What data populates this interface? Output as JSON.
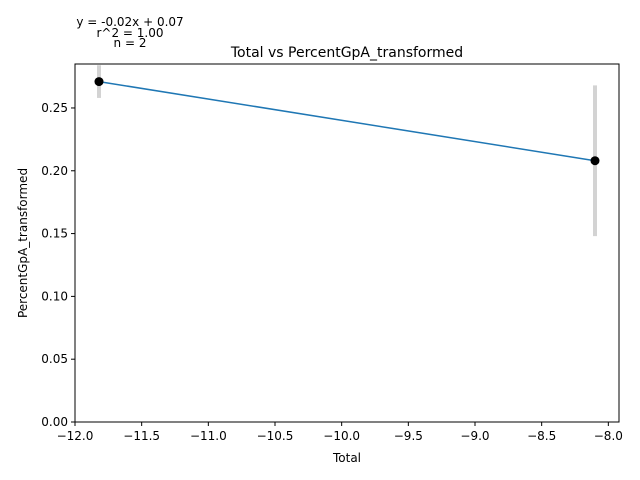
{
  "chart_data": {
    "type": "scatter",
    "title": "Total vs PercentGpA_transformed",
    "xlabel": "Total",
    "ylabel": "PercentGpA_transformed",
    "xlim": [
      -12.0,
      -7.92
    ],
    "ylim": [
      0.0,
      0.285
    ],
    "xticks": [
      -12.0,
      -11.5,
      -11.0,
      -10.5,
      -10.0,
      -9.5,
      -9.0,
      -8.5,
      -8.0
    ],
    "xtick_labels": [
      "−12.0",
      "−11.5",
      "−11.0",
      "−10.5",
      "−10.0",
      "−9.5",
      "−9.0",
      "−8.5",
      "−8.0"
    ],
    "yticks": [
      0.0,
      0.05,
      0.1,
      0.15,
      0.2,
      0.25
    ],
    "ytick_labels": [
      "0.00",
      "0.05",
      "0.10",
      "0.15",
      "0.20",
      "0.25"
    ],
    "grid": false,
    "points": [
      {
        "x": -11.82,
        "y": 0.271,
        "err_low": 0.258,
        "err_high": 0.284
      },
      {
        "x": -8.1,
        "y": 0.208,
        "err_low": 0.148,
        "err_high": 0.268
      }
    ],
    "fit_line": {
      "x": [
        -11.82,
        -8.1
      ],
      "y": [
        0.271,
        0.208
      ]
    },
    "annotations": [
      "y = -0.02x + 0.07",
      "r^2 = 1.00",
      "n = 2"
    ],
    "colors": {
      "line": "#1f77b4",
      "point": "#000000",
      "errorbar": "#d3d3d3"
    }
  }
}
